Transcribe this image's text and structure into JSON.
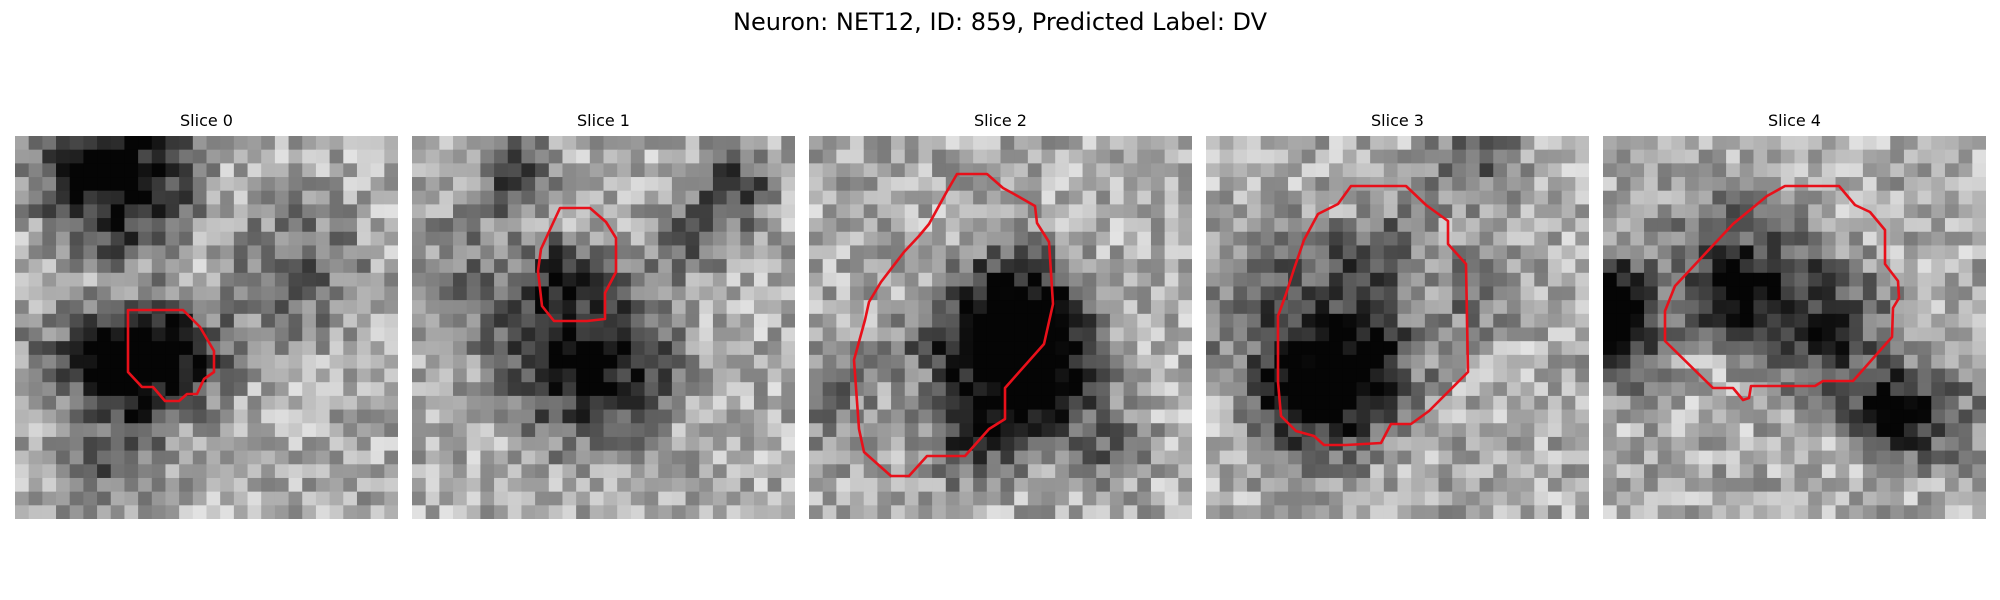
{
  "figure": {
    "title": "Neuron: NET12, ID: 859, Predicted Label: DV"
  },
  "panels": [
    {
      "title": "Slice 0"
    },
    {
      "title": "Slice 1"
    },
    {
      "title": "Slice 2"
    },
    {
      "title": "Slice 3"
    },
    {
      "title": "Slice 4"
    }
  ],
  "colors": {
    "contour": "#e8101a",
    "background": "#ffffff"
  }
}
